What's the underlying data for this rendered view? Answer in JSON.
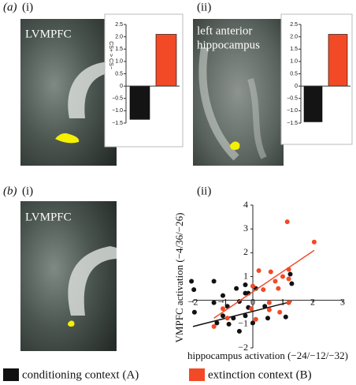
{
  "panels": {
    "a": "(a)",
    "a_i": "(i)",
    "a_ii": "(ii)",
    "b": "(b)",
    "b_i": "(i)",
    "b_ii": "(ii)",
    "a_i_region": "LVMPFC",
    "a_ii_region": [
      "left anterior",
      "hippocampus"
    ],
    "b_i_region": "LVMPFC"
  },
  "chart_data": [
    {
      "type": "bar",
      "ylabel": "CS+ > CS−",
      "values": [
        -1.35,
        2.1
      ],
      "colors": [
        "#141414",
        "#f24a26"
      ],
      "ylim": [
        -1.5,
        2.5
      ],
      "yticks": [
        {
          "value": -1.5,
          "label": "−1.5"
        },
        {
          "value": -1,
          "label": "−1.0"
        },
        {
          "value": -0.5,
          "label": "−0.5"
        },
        0,
        0.5,
        {
          "value": 1,
          "label": "1.0"
        },
        1.5,
        {
          "value": 2,
          "label": "2.0"
        },
        2.5
      ]
    },
    {
      "type": "bar",
      "values": [
        -1.45,
        2.1
      ],
      "colors": [
        "#141414",
        "#f24a26"
      ],
      "ylim": [
        -1.5,
        2.5
      ],
      "yticks": [
        {
          "value": -1.5,
          "label": "−1.5"
        },
        {
          "value": -1,
          "label": "−1.0"
        },
        {
          "value": -0.5,
          "label": "−0.5"
        },
        0,
        0.5,
        {
          "value": 1,
          "label": "1.0"
        },
        1.5,
        {
          "value": 2,
          "label": "2.0"
        },
        2.5
      ]
    },
    {
      "type": "scatter",
      "xlabel": "hippocampus activation (−24/−12/−32)",
      "ylabel": "VMPFC activation (−4/36/−26)",
      "xlim": [
        -2,
        3
      ],
      "ylim": [
        -2,
        4
      ],
      "xticks": [
        {
          "value": -2,
          "label": "−2"
        },
        {
          "value": -1,
          "label": "−1"
        },
        0,
        1,
        2,
        3
      ],
      "yticks": [
        {
          "value": -2,
          "label": "−2"
        },
        {
          "value": -1,
          "label": "−1"
        },
        1,
        2,
        3,
        4
      ],
      "series": [
        {
          "name": "conditioning context (A)",
          "color": "#111111",
          "x": [
            -2.05,
            -1.3,
            -1.97,
            -1.0,
            -0.55,
            -0.25,
            -0.15,
            0.1,
            -1.3,
            -0.85,
            -0.45,
            -1.95,
            -1.0,
            -0.65,
            -0.25,
            -0.15,
            0.4,
            -1.2,
            -0.8,
            -0.45,
            0,
            0.5,
            1.1,
            1.25,
            1.3,
            -0.25
          ],
          "values": [
            0.8,
            0.8,
            0.45,
            0.2,
            0.5,
            0.65,
            0.3,
            0.5,
            -0.1,
            -0.25,
            -0.05,
            -0.5,
            -0.65,
            -0.75,
            -0.65,
            -0.3,
            -0.25,
            -0.95,
            -1.0,
            -1.3,
            -0.95,
            -0.75,
            -0.7,
            1.1,
            0.7,
            0.3
          ],
          "fit_x": [
            -2,
            1.3
          ],
          "fit_values": [
            -1.1,
            -0.05
          ]
        },
        {
          "name": "extinction context (B)",
          "color": "#f24a26",
          "x": [
            0.2,
            0.6,
            1.0,
            1.2,
            0.75,
            1.2,
            0.0,
            0.35,
            0.85,
            0.55,
            -0.05,
            0.55,
            0.9,
            1.2,
            0.1,
            -1.3,
            -0.85,
            -1.0,
            1.15,
            2.05
          ],
          "values": [
            1.25,
            1.2,
            1.0,
            1.3,
            0.8,
            0.9,
            0.6,
            0.45,
            0.5,
            -0.1,
            -0.35,
            -0.4,
            -0.5,
            -0.1,
            -0.8,
            -1.1,
            -0.75,
            -0.35,
            3.3,
            2.45
          ],
          "fit_x": [
            -1.3,
            2.05
          ],
          "fit_values": [
            -0.75,
            2.1
          ]
        }
      ]
    }
  ]
}
